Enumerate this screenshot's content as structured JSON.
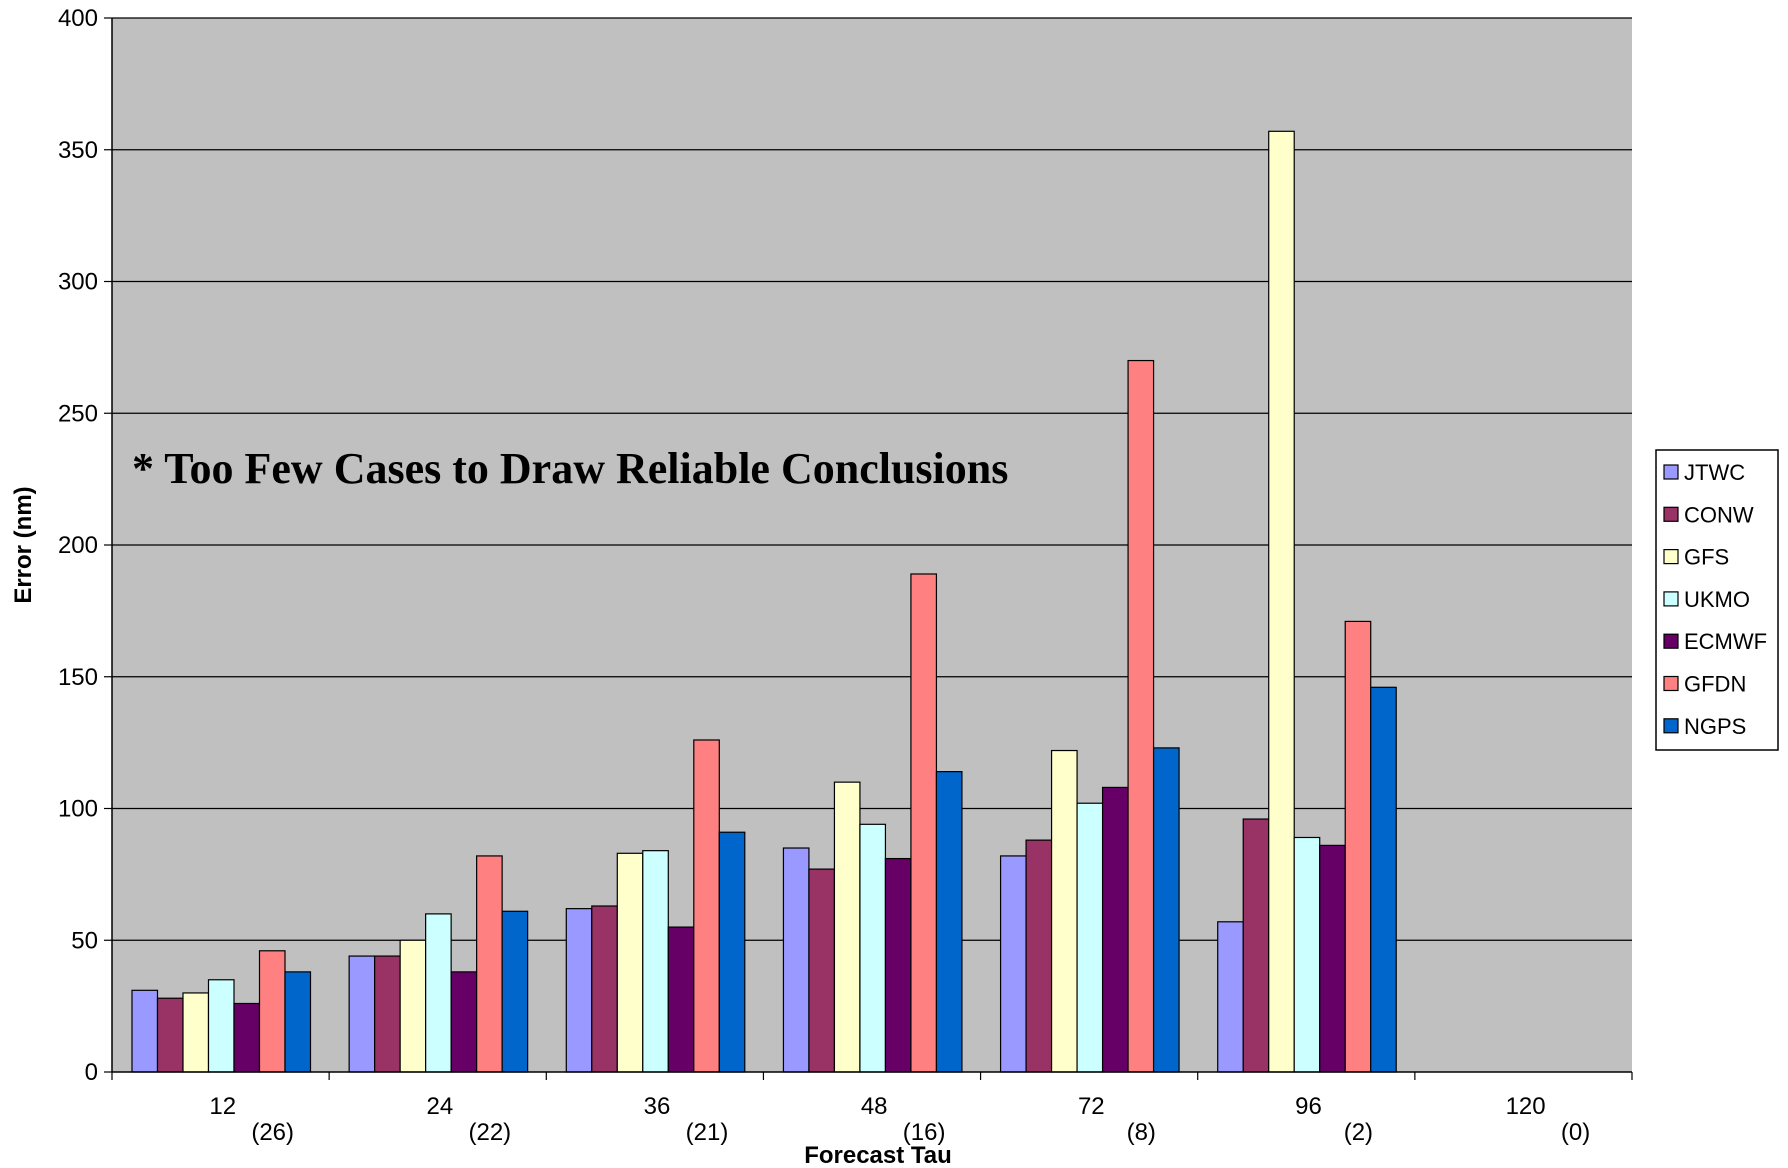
{
  "chart_data": {
    "type": "bar",
    "title": "",
    "xlabel": "Forecast Tau",
    "ylabel": "Error (nm)",
    "ylim": [
      0,
      400
    ],
    "yticks": [
      "0",
      "50",
      "100",
      "150",
      "200",
      "250",
      "300",
      "350",
      "400"
    ],
    "grid": true,
    "legend_position": "right",
    "background": "#c0c0c0",
    "annotation": "* Too Few Cases to Draw Reliable Conclusions",
    "categories": [
      "12",
      "24",
      "36",
      "48",
      "72",
      "96",
      "120"
    ],
    "case_counts": [
      "(26)",
      "(22)",
      "(21)",
      "(16)",
      "(8)",
      "(2)",
      "(0)"
    ],
    "series": [
      {
        "name": "JTWC",
        "color": "#9999ff",
        "values": [
          31,
          44,
          62,
          85,
          82,
          57,
          null
        ]
      },
      {
        "name": "CONW",
        "color": "#993366",
        "values": [
          28,
          44,
          63,
          77,
          88,
          96,
          null
        ]
      },
      {
        "name": "GFS",
        "color": "#ffffcc",
        "values": [
          30,
          50,
          83,
          110,
          122,
          357,
          null
        ]
      },
      {
        "name": "UKMO",
        "color": "#ccffff",
        "values": [
          35,
          60,
          84,
          94,
          102,
          89,
          null
        ]
      },
      {
        "name": "ECMWF",
        "color": "#660066",
        "values": [
          26,
          38,
          55,
          81,
          108,
          86,
          null
        ]
      },
      {
        "name": "GFDN",
        "color": "#ff8080",
        "values": [
          46,
          82,
          126,
          189,
          270,
          171,
          null
        ]
      },
      {
        "name": "NGPS",
        "color": "#0066cc",
        "values": [
          38,
          61,
          91,
          114,
          123,
          146,
          null
        ]
      }
    ]
  }
}
